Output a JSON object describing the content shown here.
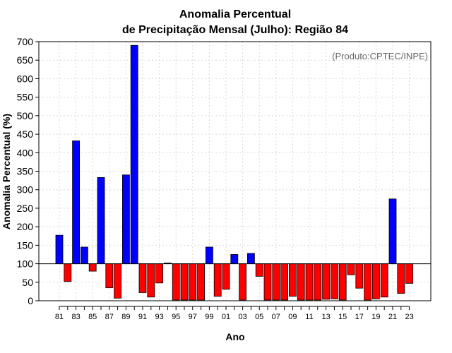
{
  "chart_data": {
    "type": "bar",
    "title_line1": "Anomalia Percentual",
    "title_line2": "de Precipitação Mensal (Julho): Região 84",
    "xlabel": "Ano",
    "ylabel": "Anomalia Percentual (%)",
    "credit": "(Produto:CPTEC/INPE)",
    "baseline": 100,
    "ylim": [
      0,
      700
    ],
    "yticks": [
      0,
      50,
      100,
      150,
      200,
      250,
      300,
      350,
      400,
      450,
      500,
      550,
      600,
      650,
      700
    ],
    "grid": true,
    "colors": {
      "above": "#0000ff",
      "below": "#ff0000",
      "edge": "#000000"
    },
    "categories": [
      "81",
      "82",
      "83",
      "84",
      "85",
      "86",
      "87",
      "88",
      "89",
      "90",
      "91",
      "92",
      "93",
      "94",
      "95",
      "96",
      "97",
      "98",
      "99",
      "00",
      "01",
      "02",
      "03",
      "04",
      "05",
      "06",
      "07",
      "08",
      "09",
      "10",
      "11",
      "12",
      "13",
      "14",
      "15",
      "16",
      "17",
      "18",
      "19",
      "20",
      "21",
      "22",
      "23"
    ],
    "xtick_labels": [
      "81",
      "83",
      "85",
      "87",
      "89",
      "91",
      "93",
      "95",
      "97",
      "99",
      "01",
      "03",
      "05",
      "07",
      "09",
      "11",
      "13",
      "15",
      "17",
      "19",
      "21",
      "23"
    ],
    "values": [
      177,
      52,
      432,
      145,
      80,
      333,
      35,
      7,
      340,
      690,
      22,
      10,
      48,
      102,
      2,
      2,
      2,
      2,
      145,
      12,
      31,
      125,
      2,
      128,
      66,
      2,
      2,
      2,
      12,
      2,
      2,
      2,
      4,
      5,
      2,
      70,
      34,
      2,
      5,
      10,
      275,
      20,
      47
    ]
  }
}
